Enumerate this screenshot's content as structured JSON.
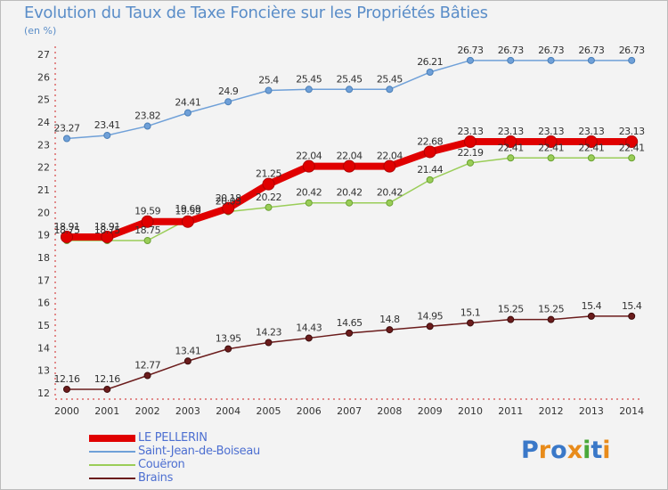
{
  "chart_data": {
    "type": "line",
    "title": "Evolution du Taux de Taxe Foncière sur les Propriétés Bâties",
    "ylabel": "(en %)",
    "xlabel": "",
    "categories": [
      "2000",
      "2001",
      "2002",
      "2003",
      "2004",
      "2005",
      "2006",
      "2007",
      "2008",
      "2009",
      "2010",
      "2011",
      "2012",
      "2013",
      "2014"
    ],
    "ylim": [
      12,
      27
    ],
    "yticks": [
      "12",
      "13",
      "14",
      "15",
      "16",
      "17",
      "18",
      "19",
      "20",
      "21",
      "22",
      "23",
      "24",
      "25",
      "26",
      "27"
    ],
    "grid": false,
    "legend_position": "bottom-left",
    "series": [
      {
        "name": "Saint-Jean-de-Boiseau",
        "color": "#6fa0d8",
        "values": [
          23.27,
          23.41,
          23.82,
          24.41,
          24.9,
          25.4,
          25.45,
          25.45,
          25.45,
          26.21,
          26.73,
          26.73,
          26.73,
          26.73,
          26.73
        ],
        "labels": [
          "23.27",
          "23.41",
          "23.82",
          "24.41",
          "24.9",
          "25.4",
          "25.45",
          "25.45",
          "25.45",
          "26.21",
          "26.73",
          "26.73",
          "26.73",
          "26.73",
          "26.73"
        ]
      },
      {
        "name": "Couëron",
        "color": "#9acd58",
        "values": [
          18.75,
          18.75,
          18.75,
          19.69,
          20.03,
          20.22,
          20.42,
          20.42,
          20.42,
          21.44,
          22.19,
          22.41,
          22.41,
          22.41,
          22.41
        ],
        "labels": [
          "18.75",
          "18.75",
          "18.75",
          "19.69",
          "20.03",
          "20.22",
          "20.42",
          "20.42",
          "20.42",
          "21.44",
          "22.19",
          "22.41",
          "22.41",
          "22.41",
          "22.41"
        ]
      },
      {
        "name": "LE PELLERIN",
        "color": "#e00000",
        "values": [
          18.91,
          18.91,
          19.59,
          19.59,
          20.18,
          21.25,
          22.04,
          22.04,
          22.04,
          22.68,
          23.13,
          23.13,
          23.13,
          23.13,
          23.13
        ],
        "labels": [
          "18.91",
          "18.91",
          "19.59",
          "19.59",
          "20.18",
          "21.25",
          "22.04",
          "22.04",
          "22.04",
          "22.68",
          "23.13",
          "23.13",
          "23.13",
          "23.13",
          "23.13"
        ]
      },
      {
        "name": "Brains",
        "color": "#6b1c1c",
        "values": [
          12.16,
          12.16,
          12.77,
          13.41,
          13.95,
          14.23,
          14.43,
          14.65,
          14.8,
          14.95,
          15.1,
          15.25,
          15.25,
          15.4,
          15.4
        ],
        "labels": [
          "12.16",
          "12.16",
          "12.77",
          "13.41",
          "13.95",
          "14.23",
          "14.43",
          "14.65",
          "14.8",
          "14.95",
          "15.1",
          "15.25",
          "15.25",
          "15.4",
          "15.4"
        ]
      }
    ]
  },
  "legend": {
    "items": [
      {
        "label": "LE PELLERIN",
        "color": "#e00000"
      },
      {
        "label": "Saint-Jean-de-Boiseau",
        "color": "#6fa0d8"
      },
      {
        "label": "Couëron",
        "color": "#9acd58"
      },
      {
        "label": "Brains",
        "color": "#6b1c1c"
      }
    ]
  },
  "logo": {
    "text": "Proxiti",
    "letters": [
      "P",
      "r",
      "o",
      "x",
      "i",
      "t",
      "i"
    ],
    "colors": [
      "#3a78c8",
      "#e88b1a",
      "#3a78c8",
      "#e88b1a",
      "#4aa83a",
      "#3a78c8",
      "#e88b1a"
    ]
  }
}
